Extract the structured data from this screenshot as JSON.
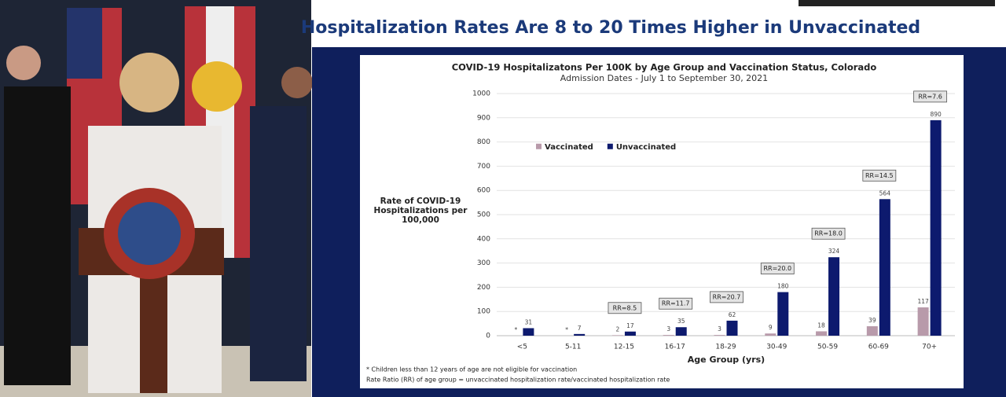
{
  "slide_title": "Hospitalization Rates Are 8 to 20 Times Higher in Unvaccinated",
  "chart_data": {
    "type": "bar",
    "title": "COVID-19 Hospitalizatons Per 100K by Age Group and Vaccination Status, Colorado",
    "subtitle": "Admission Dates - July 1 to September 30, 2021",
    "y_label": "Rate of COVID-19 Hospitalizations per 100,000",
    "x_label": "Age Group (yrs)",
    "categories": [
      "<5",
      "5-11",
      "12-15",
      "16-17",
      "18-29",
      "30-49",
      "50-59",
      "60-69",
      "70+"
    ],
    "series": [
      {
        "name": "Vaccinated",
        "color": "#b89aaa",
        "values": [
          null,
          null,
          2,
          3,
          3,
          9,
          18,
          39,
          117
        ],
        "value_labels": [
          "*",
          "*",
          "2",
          "3",
          "3",
          "9",
          "18",
          "39",
          "117"
        ]
      },
      {
        "name": "Unvaccinated",
        "color": "#0d1a6e",
        "values": [
          31,
          7,
          17,
          35,
          62,
          180,
          324,
          564,
          890
        ]
      }
    ],
    "annotations": [
      null,
      null,
      "RR=8.5",
      "RR=11.7",
      "RR=20.7",
      "RR=20.0",
      "RR=18.0",
      "RR=14.5",
      "RR=7.6"
    ],
    "ylim": [
      0,
      1000
    ],
    "yticks": [
      0,
      100,
      200,
      300,
      400,
      500,
      600,
      700,
      800,
      900,
      1000
    ],
    "grid": true,
    "legend": "upper-left",
    "footnotes": [
      "* Children less than 12 years of age are not eligible for vaccination",
      "Rate Ratio (RR) of age group = unvaccinated hospitalization rate/vaccinated hospitalization rate"
    ]
  }
}
